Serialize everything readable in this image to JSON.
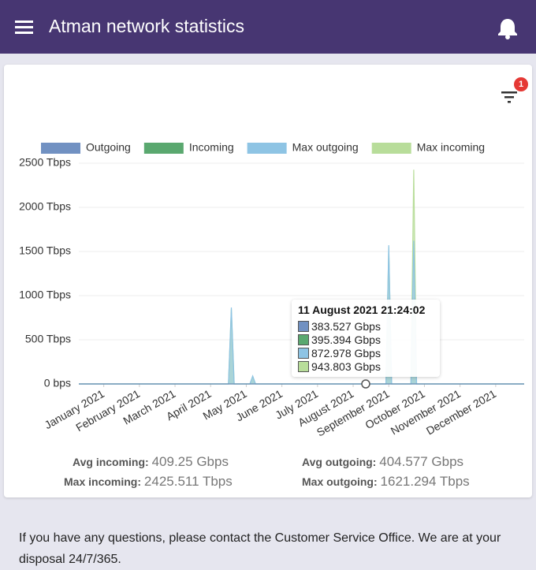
{
  "header": {
    "title": "Atman network statistics"
  },
  "filter_badge": "1",
  "chart_data": {
    "type": "area",
    "x": [
      -0.7,
      3.5,
      3.58,
      3.66,
      4.1,
      4.18,
      4.26,
      7.92,
      8.0,
      8.08,
      8.62,
      8.7,
      8.78,
      11.8
    ],
    "xlim": [
      -0.7,
      11.8
    ],
    "xticks": [
      {
        "value": 0,
        "label": "January 2021"
      },
      {
        "value": 1,
        "label": "February 2021"
      },
      {
        "value": 2,
        "label": "March 2021"
      },
      {
        "value": 3,
        "label": "April 2021"
      },
      {
        "value": 4,
        "label": "May 2021"
      },
      {
        "value": 5,
        "label": "June 2021"
      },
      {
        "value": 6,
        "label": "July 2021"
      },
      {
        "value": 7,
        "label": "August 2021"
      },
      {
        "value": 8,
        "label": "September 2021"
      },
      {
        "value": 9,
        "label": "October 2021"
      },
      {
        "value": 10,
        "label": "November 2021"
      },
      {
        "value": 11,
        "label": "December 2021"
      }
    ],
    "ylim": [
      0,
      2500
    ],
    "yticks": [
      {
        "value": 0,
        "label": "0 bps"
      },
      {
        "value": 500,
        "label": "500 Tbps"
      },
      {
        "value": 1000,
        "label": "1000 Tbps"
      },
      {
        "value": 1500,
        "label": "1500 Tbps"
      },
      {
        "value": 2000,
        "label": "2000 Tbps"
      },
      {
        "value": 2500,
        "label": "2500 Tbps"
      }
    ],
    "grid": true,
    "series": [
      {
        "name": "Outgoing",
        "color": "#7191c2",
        "values": [
          0.4,
          0.4,
          0.4,
          0.4,
          0.4,
          0.4,
          0.4,
          0.4,
          0.4,
          0.4,
          0.4,
          0.4,
          0.4,
          0.4
        ]
      },
      {
        "name": "Incoming",
        "color": "#5aa86f",
        "values": [
          0.4,
          0.4,
          0.4,
          0.4,
          0.4,
          0.4,
          0.4,
          0.4,
          0.4,
          0.4,
          0.4,
          0.4,
          0.4,
          0.4
        ]
      },
      {
        "name": "Max outgoing",
        "color": "#8ec4e4",
        "values": [
          0,
          0,
          866,
          0,
          0,
          90,
          0,
          0,
          1571,
          0,
          0,
          1621.294,
          0,
          0
        ]
      },
      {
        "name": "Max incoming",
        "color": "#b8dd9a",
        "values": [
          0,
          0,
          850,
          0,
          0,
          85,
          0,
          0,
          1550,
          0,
          0,
          2425.511,
          0,
          0
        ]
      }
    ]
  },
  "tooltip": {
    "title": "11 August 2021 21:24:02",
    "values": [
      "383.527 Gbps",
      "395.394 Gbps",
      "872.978 Gbps",
      "943.803 Gbps"
    ]
  },
  "stats": [
    {
      "label": "Avg incoming:",
      "value": "409.25 Gbps"
    },
    {
      "label": "Avg outgoing:",
      "value": "404.577 Gbps"
    },
    {
      "label": "Max incoming:",
      "value": "2425.511 Tbps"
    },
    {
      "label": "Max outgoing:",
      "value": "1621.294 Tbps"
    }
  ],
  "footer": "If you have any questions, please contact the Customer Service Office. We are at your disposal 24/7/365."
}
